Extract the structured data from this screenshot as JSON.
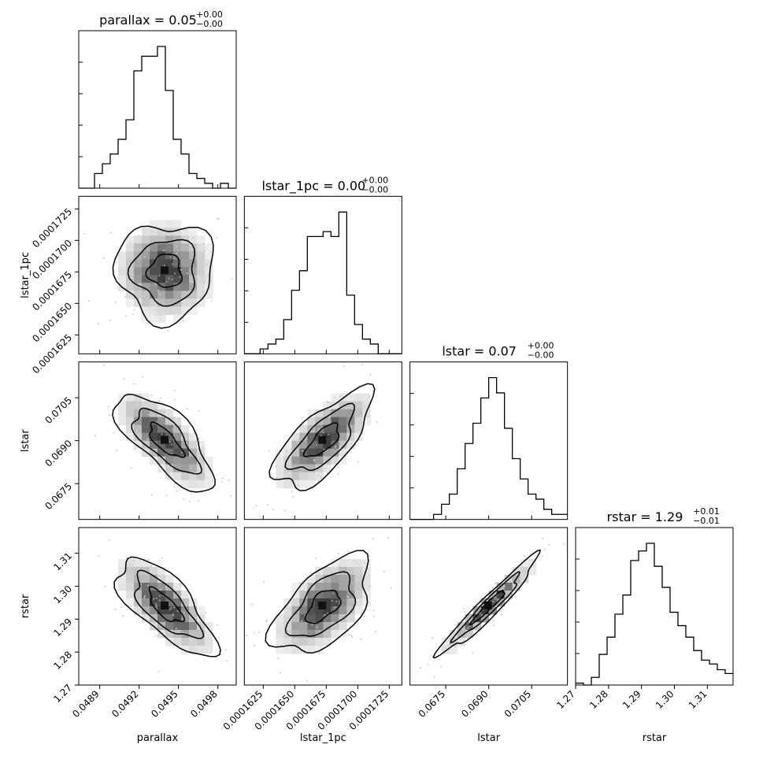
{
  "chart_data": {
    "type": "corner",
    "parameters": [
      "parallax",
      "lstar_1pc",
      "lstar",
      "rstar"
    ],
    "titles": [
      {
        "name": "parallax",
        "value": "0.05",
        "plus": "+0.00",
        "minus": "−0.00"
      },
      {
        "name": "lstar_1pc",
        "value": "0.00",
        "plus": "+0.00",
        "minus": "−0.00"
      },
      {
        "name": "lstar",
        "value": "0.07",
        "plus": "+0.00",
        "minus": "−0.00"
      },
      {
        "name": "rstar",
        "value": "1.29",
        "plus": "+0.01",
        "minus": "−0.01"
      }
    ],
    "ranges": [
      [
        0.04874,
        0.04994
      ],
      [
        0.000161,
        0.0001735
      ],
      [
        0.06625,
        0.07175
      ],
      [
        1.27,
        1.3178
      ]
    ],
    "ticks": [
      {
        "values": [
          0.0489,
          0.0492,
          0.0495,
          0.0498
        ],
        "labels": [
          "0.0489",
          "0.0492",
          "0.0495",
          "0.0498"
        ]
      },
      {
        "values": [
          0.0001625,
          0.000165,
          0.0001675,
          0.00017,
          0.0001725
        ],
        "labels": [
          "0.0001625",
          "0.0001650",
          "0.0001675",
          "0.0001700",
          "0.0001725"
        ]
      },
      {
        "values": [
          0.0675,
          0.069,
          0.0705
        ],
        "labels": [
          "0.0675",
          "0.0690",
          "0.0705"
        ]
      },
      {
        "values": [
          1.27,
          1.28,
          1.29,
          1.3,
          1.31
        ],
        "labels": [
          "1.27",
          "1.28",
          "1.29",
          "1.30",
          "1.31"
        ]
      }
    ],
    "histograms": [
      [
        0,
        0,
        3,
        5,
        7,
        10,
        14,
        24,
        27,
        27,
        29,
        20,
        10,
        7,
        3,
        2,
        1,
        0,
        1,
        0
      ],
      [
        0,
        0,
        1,
        2,
        3,
        7,
        13,
        17,
        24,
        24,
        25,
        24,
        29,
        12,
        6,
        3,
        2,
        0,
        0,
        0
      ],
      [
        0,
        0,
        0,
        1,
        3,
        5,
        10,
        15,
        19,
        24,
        28,
        25,
        18,
        12,
        8,
        5,
        4,
        2,
        1,
        1
      ],
      [
        1,
        0,
        4,
        16,
        25,
        37,
        47,
        65,
        70,
        74,
        62,
        51,
        38,
        31,
        25,
        18,
        13,
        11,
        8,
        6
      ]
    ],
    "correlations": {
      "1-0": 0.0,
      "2-0": -0.72,
      "2-1": 0.7,
      "3-0": -0.72,
      "3-1": 0.55,
      "3-2": 0.96
    }
  }
}
